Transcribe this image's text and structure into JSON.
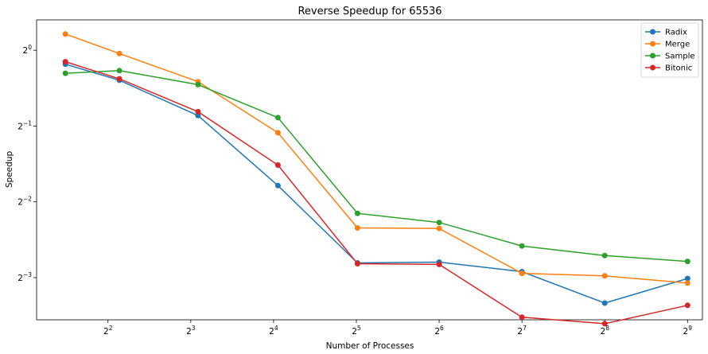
{
  "chart_data": {
    "type": "line",
    "title": "Reverse Speedup for 65536",
    "xlabel": "Number of Processes",
    "ylabel": "Speedup",
    "xscale": "log2",
    "yscale": "log2",
    "x": [
      2.8,
      4.4,
      8.5,
      16.6,
      32.3,
      64.0,
      128.0,
      256.0,
      512.0
    ],
    "xlim": [
      2.2,
      580
    ],
    "ylim": [
      0.085,
      1.32
    ],
    "xticks": [
      {
        "value": 4,
        "base": "2",
        "exp": "2"
      },
      {
        "value": 8,
        "base": "2",
        "exp": "3"
      },
      {
        "value": 16,
        "base": "2",
        "exp": "4"
      },
      {
        "value": 32,
        "base": "2",
        "exp": "5"
      },
      {
        "value": 64,
        "base": "2",
        "exp": "6"
      },
      {
        "value": 128,
        "base": "2",
        "exp": "7"
      },
      {
        "value": 256,
        "base": "2",
        "exp": "8"
      },
      {
        "value": 512,
        "base": "2",
        "exp": "9"
      }
    ],
    "yticks": [
      {
        "value": 1,
        "base": "2",
        "exp": "0"
      },
      {
        "value": 0.5,
        "base": "2",
        "exp": "−1"
      },
      {
        "value": 0.25,
        "base": "2",
        "exp": "−2"
      },
      {
        "value": 0.125,
        "base": "2",
        "exp": "−3"
      }
    ],
    "grid": false,
    "legend_position": "top-right",
    "series": [
      {
        "name": "Radix",
        "color": "#1f77b4",
        "values": [
          0.88,
          0.76,
          0.55,
          0.29,
          0.143,
          0.144,
          0.132,
          0.099,
          0.124
        ]
      },
      {
        "name": "Merge",
        "color": "#ff7f0e",
        "values": [
          1.16,
          0.97,
          0.75,
          0.47,
          0.197,
          0.196,
          0.13,
          0.127,
          0.119
        ]
      },
      {
        "name": "Sample",
        "color": "#2ca02c",
        "values": [
          0.81,
          0.83,
          0.73,
          0.54,
          0.225,
          0.207,
          0.167,
          0.153,
          0.145
        ]
      },
      {
        "name": "Bitonic",
        "color": "#d62728",
        "values": [
          0.9,
          0.77,
          0.57,
          0.35,
          0.142,
          0.141,
          0.087,
          0.082,
          0.097
        ]
      }
    ]
  }
}
